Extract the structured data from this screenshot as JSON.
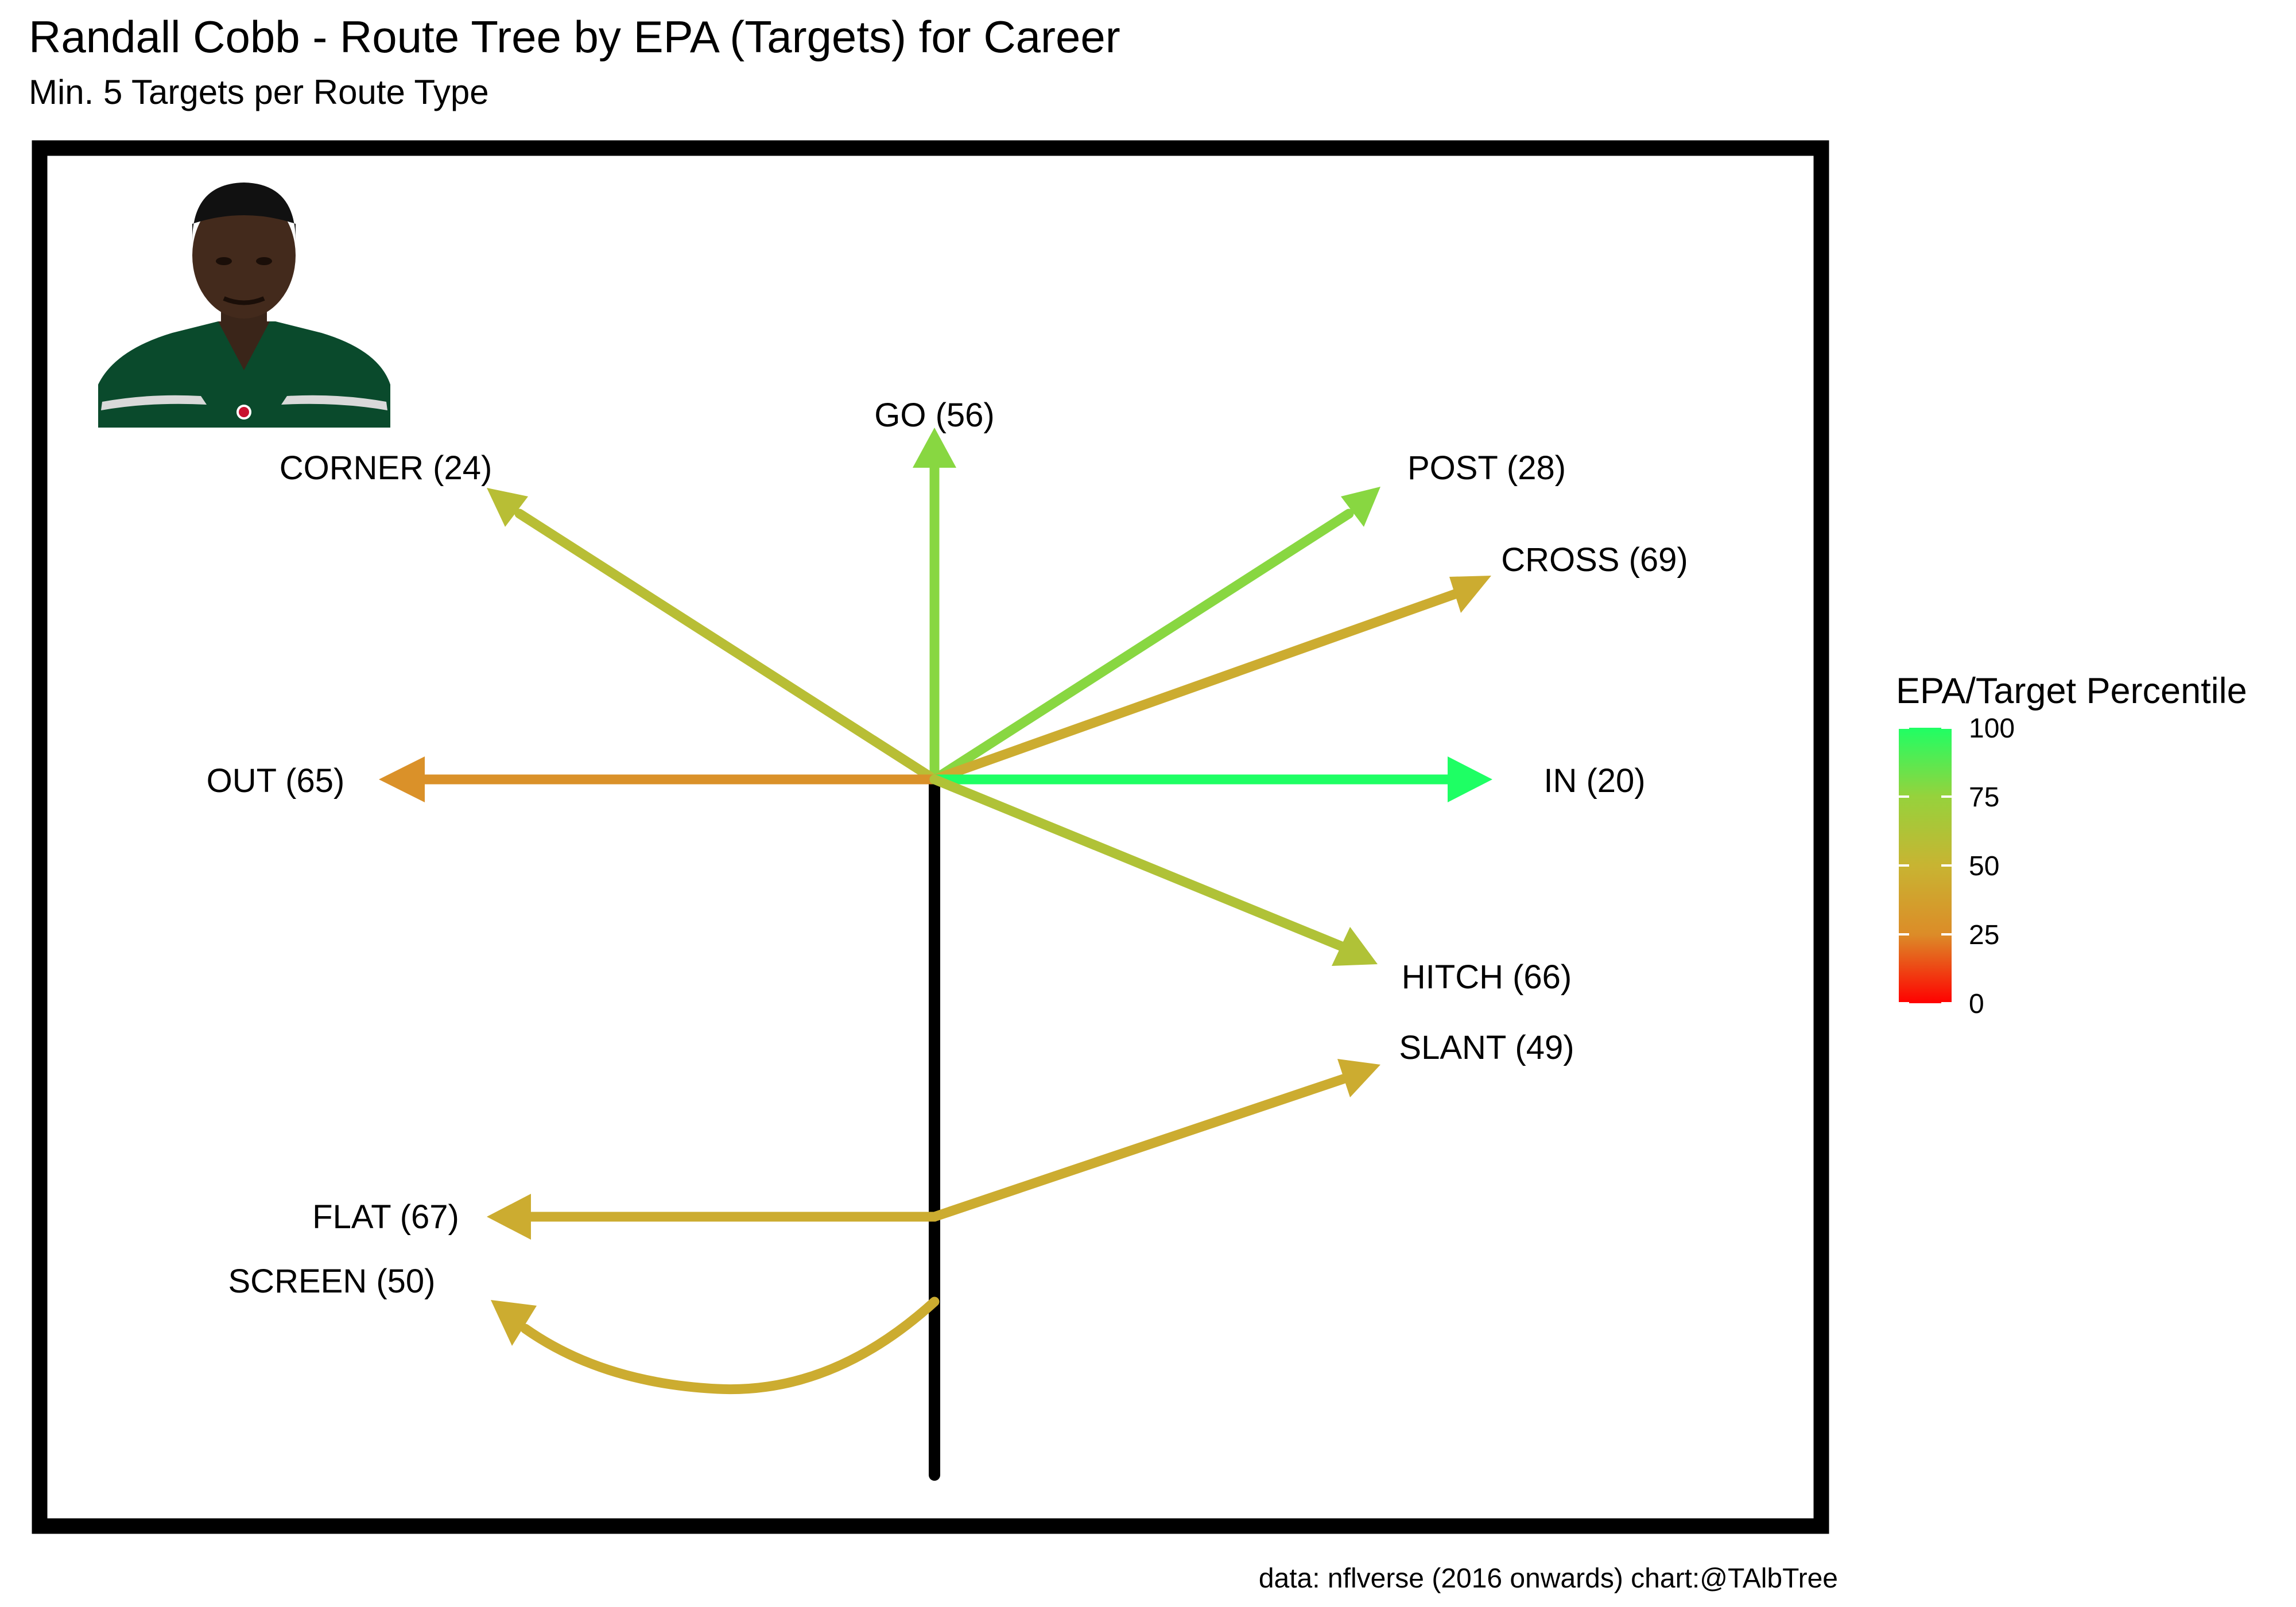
{
  "chart_data": {
    "type": "route_tree",
    "title": "Randall Cobb - Route Tree by EPA (Targets) for Career",
    "subtitle": "Min. 5 Targets per Route Type",
    "caption": "data: nflverse (2016 onwards)  chart:@TAlbTree",
    "legend": {
      "title": "EPA/Target Percentile",
      "placement": "right",
      "range": [
        0,
        100
      ],
      "ticks": [
        0,
        25,
        50,
        75,
        100
      ],
      "colors": [
        "#ff0000",
        "#dc8c28",
        "#c8b432",
        "#96d23c",
        "#1eff64"
      ]
    },
    "routes": [
      {
        "route": "GO",
        "label": "GO (56)",
        "epa_percentile": 78
      },
      {
        "route": "CORNER",
        "label": "CORNER (24)",
        "epa_percentile": 58
      },
      {
        "route": "POST",
        "label": "POST (28)",
        "epa_percentile": 78
      },
      {
        "route": "CROSS",
        "label": "CROSS (69)",
        "epa_percentile": 45
      },
      {
        "route": "OUT",
        "label": "OUT (65)",
        "epa_percentile": 28
      },
      {
        "route": "IN",
        "label": "IN (20)",
        "epa_percentile": 100
      },
      {
        "route": "HITCH",
        "label": "HITCH (66)",
        "epa_percentile": 62
      },
      {
        "route": "SLANT",
        "label": "SLANT (49)",
        "epa_percentile": 45
      },
      {
        "route": "FLAT",
        "label": "FLAT (67)",
        "epa_percentile": 45
      },
      {
        "route": "SCREEN",
        "label": "SCREEN (50)",
        "epa_percentile": 45
      }
    ],
    "player_image": "player-headshot"
  }
}
